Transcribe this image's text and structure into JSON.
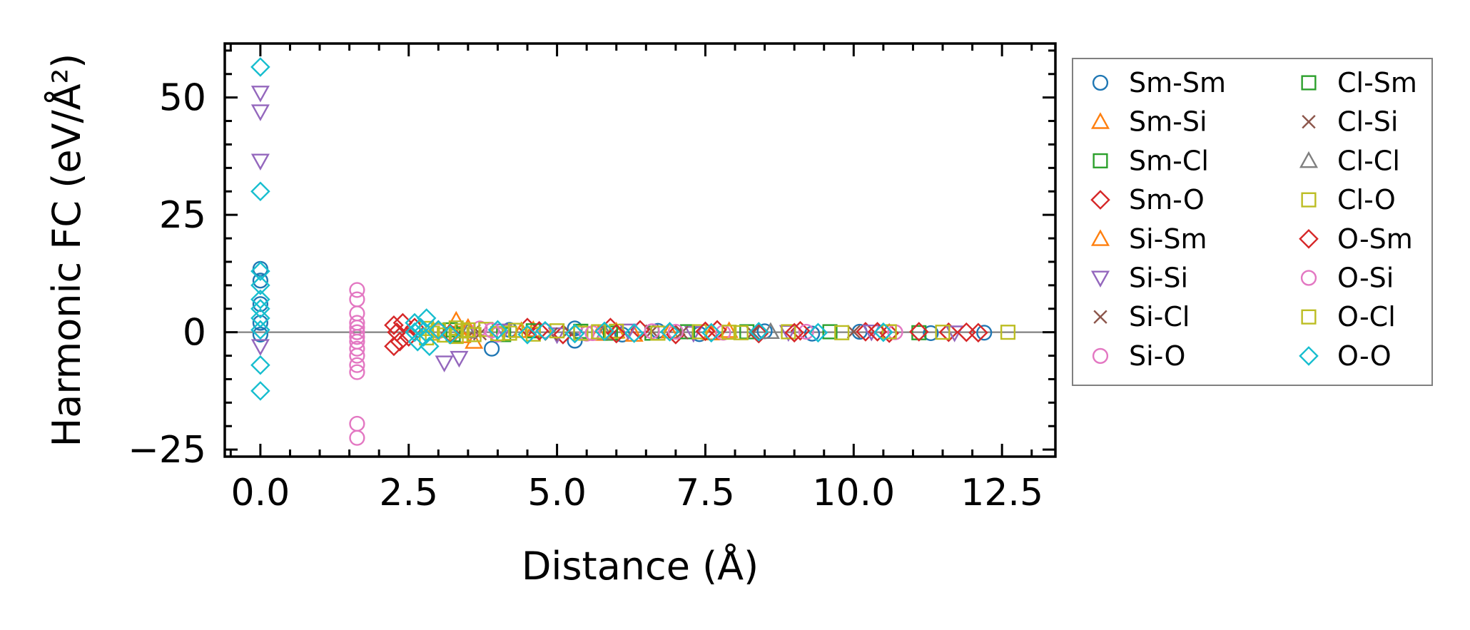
{
  "chart_data": {
    "type": "scatter",
    "xlabel": "Distance (Å)",
    "ylabel": "Harmonic FC (eV/Å²)",
    "xlim": [
      -0.6,
      13.4
    ],
    "ylim": [
      -26.5,
      61.5
    ],
    "xticks": [
      0.0,
      2.5,
      5.0,
      7.5,
      10.0,
      12.5
    ],
    "xtick_labels": [
      "0.0",
      "2.5",
      "5.0",
      "7.5",
      "10.0",
      "12.5"
    ],
    "yticks": [
      -25,
      0,
      25,
      50
    ],
    "ytick_labels": [
      "−25",
      "0",
      "25",
      "50"
    ],
    "zero_line": true,
    "legend_position": "right",
    "series": [
      {
        "name": "Sm-Sm",
        "marker": "circle",
        "color": "#1f77b4",
        "points": [
          [
            0,
            13.5
          ],
          [
            0,
            11
          ],
          [
            0,
            6
          ],
          [
            0,
            2
          ],
          [
            0,
            -0.5
          ],
          [
            3.9,
            -3.5
          ],
          [
            4.2,
            0.5
          ],
          [
            5.3,
            -1.8
          ],
          [
            5.3,
            0.8
          ],
          [
            6.1,
            -0.5
          ],
          [
            6.7,
            0.3
          ],
          [
            7.4,
            -0.4
          ],
          [
            8.5,
            0.2
          ],
          [
            9.3,
            -0.3
          ],
          [
            10.1,
            0.1
          ],
          [
            11.3,
            -0.2
          ],
          [
            12.2,
            -0.1
          ]
        ]
      },
      {
        "name": "Sm-Si",
        "marker": "triangle-up",
        "color": "#ff7f0e",
        "points": [
          [
            3.3,
            2.5
          ],
          [
            3.6,
            -2
          ],
          [
            3.5,
            1
          ],
          [
            4.6,
            0.5
          ],
          [
            5.7,
            -0.3
          ],
          [
            6.3,
            -0.5
          ],
          [
            6.9,
            0.2
          ],
          [
            7.9,
            0.3
          ]
        ]
      },
      {
        "name": "Sm-Cl",
        "marker": "square",
        "color": "#2ca02c",
        "points": [
          [
            3.2,
            0.5
          ],
          [
            4.1,
            -0.5
          ],
          [
            5.4,
            0.2
          ],
          [
            6.6,
            -0.2
          ],
          [
            8.2,
            0.1
          ],
          [
            9.6,
            0.1
          ],
          [
            11.1,
            -0.1
          ]
        ]
      },
      {
        "name": "Sm-O",
        "marker": "diamond",
        "color": "#d62728",
        "points": [
          [
            2.25,
            1.5
          ],
          [
            2.25,
            -3
          ],
          [
            2.3,
            0
          ],
          [
            2.5,
            -1
          ],
          [
            2.4,
            2
          ],
          [
            3.0,
            0.5
          ],
          [
            4.5,
            1
          ],
          [
            5.1,
            -0.5
          ],
          [
            5.9,
            1
          ],
          [
            6.4,
            0.5
          ],
          [
            7.0,
            -0.5
          ],
          [
            7.7,
            0.5
          ],
          [
            8.4,
            -0.3
          ],
          [
            9.1,
            0.3
          ],
          [
            10.2,
            0.1
          ],
          [
            10.6,
            -0.2
          ],
          [
            11.1,
            0.1
          ],
          [
            11.6,
            0
          ],
          [
            12.1,
            -0.1
          ]
        ]
      },
      {
        "name": "Si-Sm",
        "marker": "triangle-up",
        "color": "#ff7f0e",
        "points": [
          [
            3.4,
            -0.8
          ],
          [
            4.4,
            0.3
          ],
          [
            6.0,
            0.2
          ],
          [
            7.6,
            -0.2
          ]
        ]
      },
      {
        "name": "Si-Si",
        "marker": "triangle-down",
        "color": "#9467bd",
        "points": [
          [
            0,
            51
          ],
          [
            0,
            47
          ],
          [
            0,
            36.5
          ],
          [
            0,
            -3
          ],
          [
            3.1,
            -6.5
          ],
          [
            3.35,
            -5.5
          ],
          [
            4.1,
            0.3
          ],
          [
            5.0,
            -0.5
          ],
          [
            6.2,
            0.3
          ],
          [
            7.3,
            -0.2
          ],
          [
            8.9,
            0
          ],
          [
            10.3,
            0.1
          ],
          [
            11.7,
            -0.1
          ]
        ]
      },
      {
        "name": "Si-Cl",
        "marker": "x",
        "color": "#8c564b",
        "points": [
          [
            3.6,
            0.3
          ],
          [
            4.9,
            -0.4
          ],
          [
            6.6,
            0.2
          ],
          [
            8.3,
            -0.1
          ],
          [
            10.0,
            0.1
          ]
        ]
      },
      {
        "name": "Si-O",
        "marker": "circle",
        "color": "#e377c2",
        "points": [
          [
            1.63,
            9
          ],
          [
            1.63,
            7
          ],
          [
            1.63,
            4
          ],
          [
            1.63,
            2
          ],
          [
            1.63,
            0
          ],
          [
            1.63,
            -2
          ],
          [
            1.63,
            -3.5
          ],
          [
            1.63,
            -5
          ],
          [
            1.63,
            -7
          ],
          [
            1.63,
            -8.5
          ],
          [
            1.63,
            -19.5
          ],
          [
            1.63,
            -22.5
          ],
          [
            3.0,
            0.2
          ],
          [
            3.7,
            0.8
          ],
          [
            4.0,
            -0.5
          ],
          [
            4.8,
            0.3
          ],
          [
            5.5,
            -0.3
          ],
          [
            6.6,
            0.2
          ],
          [
            7.8,
            -0.1
          ],
          [
            9.2,
            0.1
          ],
          [
            10.7,
            0
          ]
        ]
      },
      {
        "name": "Cl-Sm",
        "marker": "square",
        "color": "#2ca02c",
        "points": [
          [
            3.25,
            -0.5
          ],
          [
            4.6,
            0.3
          ],
          [
            5.9,
            -0.2
          ],
          [
            7.2,
            0.1
          ]
        ]
      },
      {
        "name": "Cl-Si",
        "marker": "x",
        "color": "#8c564b",
        "points": [
          [
            3.7,
            -0.3
          ],
          [
            5.2,
            0.2
          ],
          [
            7.1,
            -0.1
          ]
        ]
      },
      {
        "name": "Cl-Cl",
        "marker": "triangle-up",
        "color": "#7f7f7f",
        "points": [
          [
            3.5,
            0.2
          ],
          [
            5.8,
            -0.1
          ],
          [
            8.6,
            0.1
          ]
        ]
      },
      {
        "name": "Cl-O",
        "marker": "square",
        "color": "#bcbd22",
        "points": [
          [
            2.8,
            0.8
          ],
          [
            2.8,
            -1.2
          ],
          [
            3.0,
            0.4
          ],
          [
            3.1,
            -0.6
          ],
          [
            3.3,
            0.9
          ],
          [
            3.3,
            -0.9
          ],
          [
            3.5,
            0.5
          ],
          [
            3.6,
            -0.5
          ],
          [
            3.8,
            0.6
          ],
          [
            4.0,
            -0.3
          ],
          [
            4.3,
            0.4
          ],
          [
            4.6,
            -0.4
          ],
          [
            5.0,
            0.3
          ],
          [
            5.4,
            -0.2
          ],
          [
            6.0,
            0.2
          ],
          [
            6.7,
            -0.2
          ],
          [
            7.4,
            0.1
          ],
          [
            8.1,
            -0.1
          ],
          [
            8.9,
            0.1
          ],
          [
            9.8,
            -0.1
          ],
          [
            10.6,
            0.1
          ],
          [
            11.5,
            0
          ],
          [
            12.6,
            0
          ]
        ]
      },
      {
        "name": "O-Sm",
        "marker": "diamond",
        "color": "#d62728",
        "points": [
          [
            2.35,
            -2
          ],
          [
            2.6,
            1
          ],
          [
            3.2,
            -0.3
          ],
          [
            4.7,
            0.3
          ],
          [
            6.0,
            -0.3
          ],
          [
            7.5,
            0.2
          ],
          [
            9.0,
            -0.1
          ],
          [
            10.4,
            0.1
          ],
          [
            11.9,
            0
          ]
        ]
      },
      {
        "name": "O-Si",
        "marker": "circle",
        "color": "#e377c2",
        "points": [
          [
            1.63,
            1
          ],
          [
            1.63,
            -1
          ],
          [
            3.9,
            0.4
          ],
          [
            5.6,
            -0.2
          ],
          [
            7.0,
            0.1
          ]
        ]
      },
      {
        "name": "O-Cl",
        "marker": "square",
        "color": "#bcbd22",
        "points": [
          [
            2.9,
            -0.2
          ],
          [
            3.4,
            0.3
          ],
          [
            4.2,
            -0.2
          ],
          [
            5.7,
            0.1
          ],
          [
            7.9,
            0
          ]
        ]
      },
      {
        "name": "O-O",
        "marker": "diamond",
        "color": "#17becf",
        "points": [
          [
            0,
            56.5
          ],
          [
            0,
            30
          ],
          [
            0,
            13
          ],
          [
            0,
            10
          ],
          [
            0,
            7
          ],
          [
            0,
            5
          ],
          [
            0,
            3
          ],
          [
            0,
            0.5
          ],
          [
            0,
            -7
          ],
          [
            0,
            -12.5
          ],
          [
            2.6,
            2
          ],
          [
            2.6,
            0
          ],
          [
            2.65,
            -2
          ],
          [
            2.7,
            1
          ],
          [
            2.75,
            -1
          ],
          [
            2.8,
            3
          ],
          [
            2.85,
            -3
          ],
          [
            3.0,
            0.5
          ],
          [
            3.2,
            -0.5
          ],
          [
            4.0,
            0.5
          ],
          [
            4.5,
            -0.5
          ],
          [
            4.8,
            0.3
          ],
          [
            5.3,
            -0.3
          ],
          [
            5.8,
            0.2
          ],
          [
            6.3,
            -0.2
          ],
          [
            6.9,
            0.1
          ],
          [
            7.6,
            -0.1
          ],
          [
            8.4,
            0.1
          ],
          [
            9.4,
            -0.1
          ],
          [
            10.5,
            0
          ]
        ]
      }
    ]
  }
}
